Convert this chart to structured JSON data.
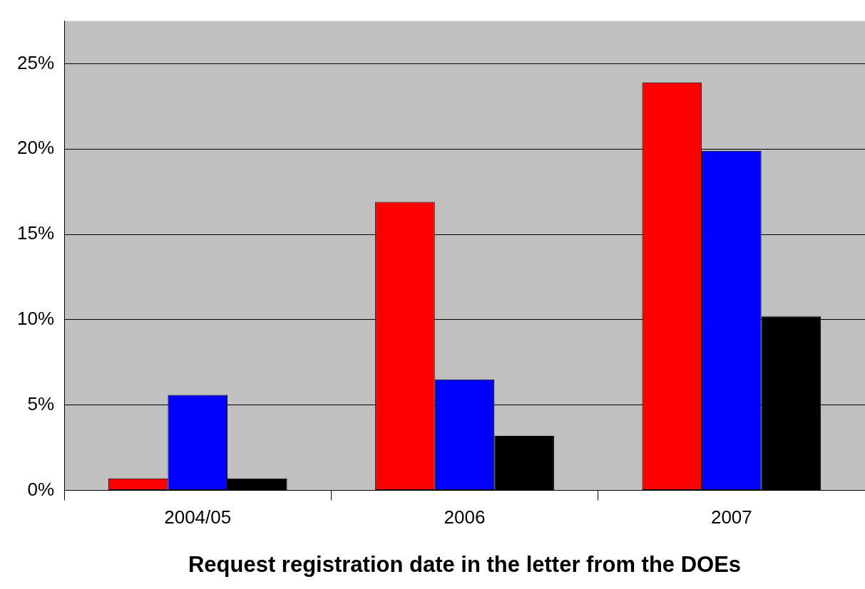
{
  "chart_data": {
    "type": "bar",
    "xlabel": "Request registration date in the letter from the DOEs",
    "categories": [
      "2004/05",
      "2006",
      "2007"
    ],
    "series": [
      {
        "color": "#ff0000",
        "values": [
          0.7,
          16.9,
          23.9
        ]
      },
      {
        "color": "#0000ff",
        "values": [
          5.6,
          6.5,
          19.9
        ]
      },
      {
        "color": "#000000",
        "values": [
          0.7,
          3.2,
          10.2
        ]
      }
    ],
    "ylim": [
      0,
      27.5
    ],
    "yticks": [
      {
        "value": 0,
        "label": "0%"
      },
      {
        "value": 5,
        "label": "5%"
      },
      {
        "value": 10,
        "label": "10%"
      },
      {
        "value": 15,
        "label": "15%"
      },
      {
        "value": 20,
        "label": "20%"
      },
      {
        "value": 25,
        "label": "25%"
      }
    ],
    "grid": "y",
    "legend": false
  }
}
